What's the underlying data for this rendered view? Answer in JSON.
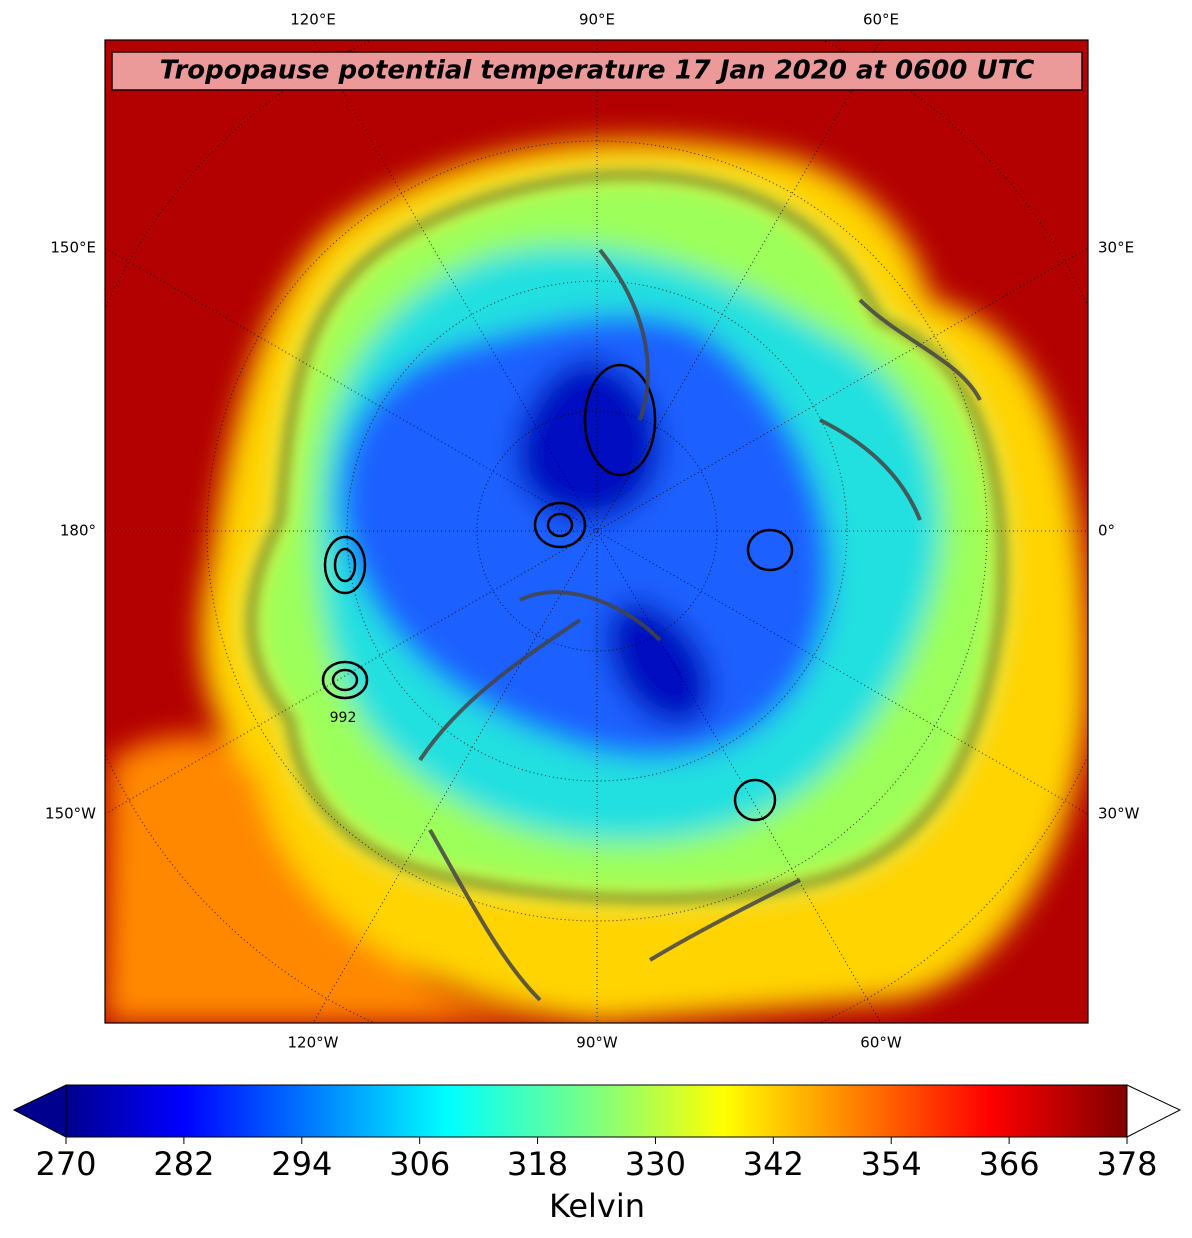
{
  "map": {
    "title": "Tropopause potential temperature 17 Jan 2020 at 0600 UTC",
    "lon_labels": {
      "top": [
        "120°E",
        "90°E",
        "60°E"
      ],
      "bottom": [
        "120°W",
        "90°W",
        "60°W"
      ],
      "left": [
        "150°E",
        "180°",
        "150°W"
      ],
      "right": [
        "30°E",
        "0°",
        "30°W"
      ]
    },
    "contour_label": "992"
  },
  "colorbar": {
    "label": "Kelvin",
    "range": [
      270,
      378
    ],
    "ticks": [
      270,
      282,
      294,
      306,
      318,
      330,
      342,
      354,
      366,
      378
    ]
  }
}
